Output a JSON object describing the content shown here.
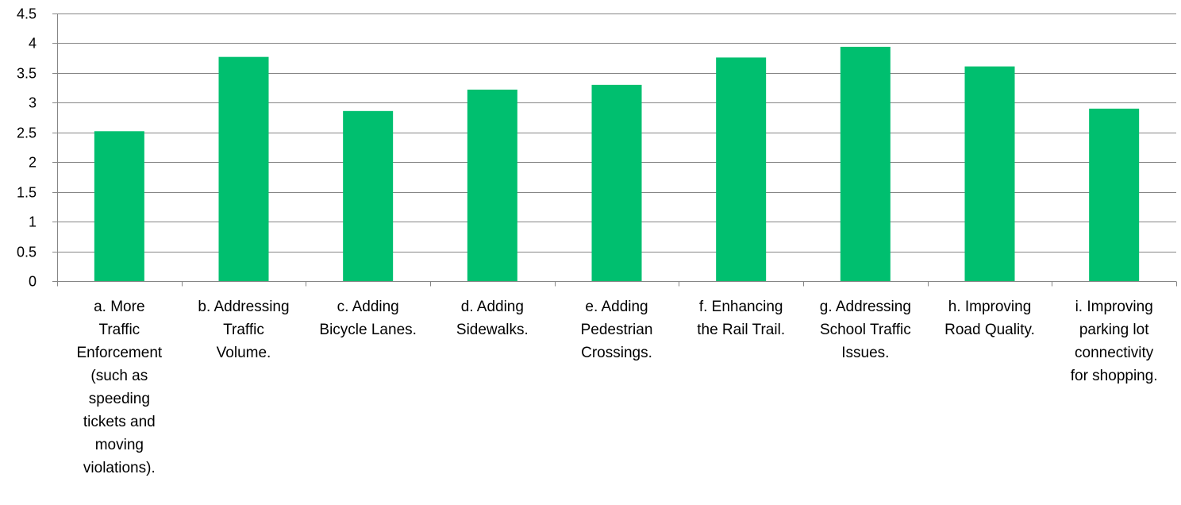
{
  "chart_data": {
    "type": "bar",
    "title": "",
    "xlabel": "",
    "ylabel": "",
    "ylim": [
      0,
      4.5
    ],
    "yticks": [
      "0",
      "0.5",
      "1",
      "1.5",
      "2",
      "2.5",
      "3",
      "3.5",
      "4",
      "4.5"
    ],
    "grid": true,
    "legend": "none",
    "bar_color": "#00BF6F",
    "grid_color": "#868686",
    "categories": [
      [
        "a. More",
        "Traffic",
        "Enforcement",
        "(such as",
        "speeding",
        "tickets and",
        "moving",
        "violations)."
      ],
      [
        "b. Addressing",
        "Traffic",
        "Volume."
      ],
      [
        "c. Adding",
        "Bicycle Lanes."
      ],
      [
        "d. Adding",
        "Sidewalks."
      ],
      [
        "e. Adding",
        "Pedestrian",
        "Crossings."
      ],
      [
        "f. Enhancing",
        "the Rail Trail."
      ],
      [
        "g. Addressing",
        "School Traffic",
        "Issues."
      ],
      [
        "h. Improving",
        "Road Quality."
      ],
      [
        "i. Improving",
        "parking lot",
        "connectivity",
        "for shopping."
      ]
    ],
    "series": [
      {
        "values": [
          2.52,
          3.77,
          2.86,
          3.22,
          3.3,
          3.76,
          3.94,
          3.61,
          2.9
        ]
      }
    ]
  }
}
